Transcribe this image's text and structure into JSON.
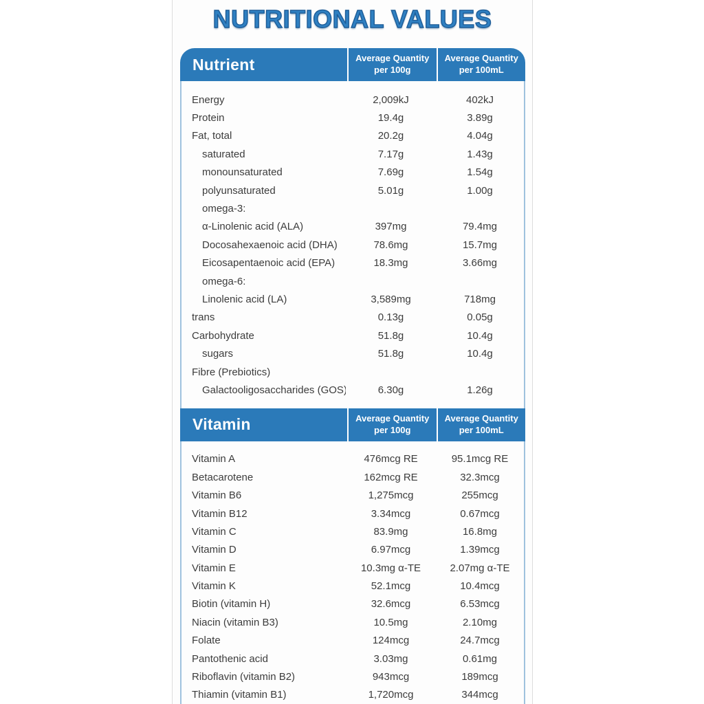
{
  "title": "NUTRITIONAL VALUES",
  "colors": {
    "header_blue": "#2b7ab9",
    "title_blue": "#2f80c2",
    "title_outline": "#1d5c97",
    "border_blue": "#9fc2de",
    "text_dark": "#3c3c3c"
  },
  "tables": [
    {
      "header": {
        "title": "Nutrient",
        "col1_line1": "Average Quantity",
        "col1_line2": "per 100g",
        "col2_line1": "Average Quantity",
        "col2_line2": "per 100mL"
      },
      "rows": [
        {
          "label": "Energy",
          "per100g": "2,009kJ",
          "per100mL": "402kJ",
          "indent": 0
        },
        {
          "label": "Protein",
          "per100g": "19.4g",
          "per100mL": "3.89g",
          "indent": 0
        },
        {
          "label": "Fat, total",
          "per100g": "20.2g",
          "per100mL": "4.04g",
          "indent": 0
        },
        {
          "label": "saturated",
          "per100g": "7.17g",
          "per100mL": "1.43g",
          "indent": 1
        },
        {
          "label": "monounsaturated",
          "per100g": "7.69g",
          "per100mL": "1.54g",
          "indent": 1
        },
        {
          "label": "polyunsaturated",
          "per100g": "5.01g",
          "per100mL": "1.00g",
          "indent": 1
        },
        {
          "label": "omega-3:",
          "per100g": "",
          "per100mL": "",
          "indent": 1
        },
        {
          "label": "α-Linolenic acid (ALA)",
          "per100g": "397mg",
          "per100mL": "79.4mg",
          "indent": 1
        },
        {
          "label": "Docosahexaenoic acid (DHA)",
          "per100g": "78.6mg",
          "per100mL": "15.7mg",
          "indent": 1
        },
        {
          "label": "Eicosapentaenoic acid (EPA)",
          "per100g": "18.3mg",
          "per100mL": "3.66mg",
          "indent": 1
        },
        {
          "label": "omega-6:",
          "per100g": "",
          "per100mL": "",
          "indent": 1
        },
        {
          "label": "Linolenic acid (LA)",
          "per100g": "3,589mg",
          "per100mL": "718mg",
          "indent": 1
        },
        {
          "label": "trans",
          "per100g": "0.13g",
          "per100mL": "0.05g",
          "indent": 0
        },
        {
          "label": "Carbohydrate",
          "per100g": "51.8g",
          "per100mL": "10.4g",
          "indent": 0
        },
        {
          "label": "sugars",
          "per100g": "51.8g",
          "per100mL": "10.4g",
          "indent": 1
        },
        {
          "label": "Fibre (Prebiotics)",
          "per100g": "",
          "per100mL": "",
          "indent": 0
        },
        {
          "label": "Galactooligosaccharides (GOS)",
          "per100g": "6.30g",
          "per100mL": "1.26g",
          "indent": 1
        }
      ]
    },
    {
      "header": {
        "title": "Vitamin",
        "col1_line1": "Average Quantity",
        "col1_line2": "per 100g",
        "col2_line1": "Average Quantity",
        "col2_line2": "per 100mL"
      },
      "rows": [
        {
          "label": "Vitamin A",
          "per100g": "476mcg RE",
          "per100mL": "95.1mcg RE",
          "indent": 0
        },
        {
          "label": "Betacarotene",
          "per100g": "162mcg RE",
          "per100mL": "32.3mcg",
          "indent": 0
        },
        {
          "label": "Vitamin B6",
          "per100g": "1,275mcg",
          "per100mL": "255mcg",
          "indent": 0
        },
        {
          "label": "Vitamin B12",
          "per100g": "3.34mcg",
          "per100mL": "0.67mcg",
          "indent": 0
        },
        {
          "label": "Vitamin C",
          "per100g": "83.9mg",
          "per100mL": "16.8mg",
          "indent": 0
        },
        {
          "label": "Vitamin D",
          "per100g": "6.97mcg",
          "per100mL": "1.39mcg",
          "indent": 0
        },
        {
          "label": "Vitamin E",
          "per100g": "10.3mg α-TE",
          "per100mL": "2.07mg α-TE",
          "indent": 0
        },
        {
          "label": "Vitamin K",
          "per100g": "52.1mcg",
          "per100mL": "10.4mcg",
          "indent": 0
        },
        {
          "label": "Biotin (vitamin H)",
          "per100g": "32.6mcg",
          "per100mL": "6.53mcg",
          "indent": 0
        },
        {
          "label": "Niacin (vitamin B3)",
          "per100g": "10.5mg",
          "per100mL": "2.10mg",
          "indent": 0
        },
        {
          "label": "Folate",
          "per100g": "124mcg",
          "per100mL": "24.7mcg",
          "indent": 0
        },
        {
          "label": "Pantothenic acid",
          "per100g": "3.03mg",
          "per100mL": "0.61mg",
          "indent": 0
        },
        {
          "label": "Riboflavin (vitamin B2)",
          "per100g": "943mcg",
          "per100mL": "189mcg",
          "indent": 0
        },
        {
          "label": "Thiamin (vitamin B1)",
          "per100g": "1,720mcg",
          "per100mL": "344mcg",
          "indent": 0
        }
      ]
    }
  ]
}
